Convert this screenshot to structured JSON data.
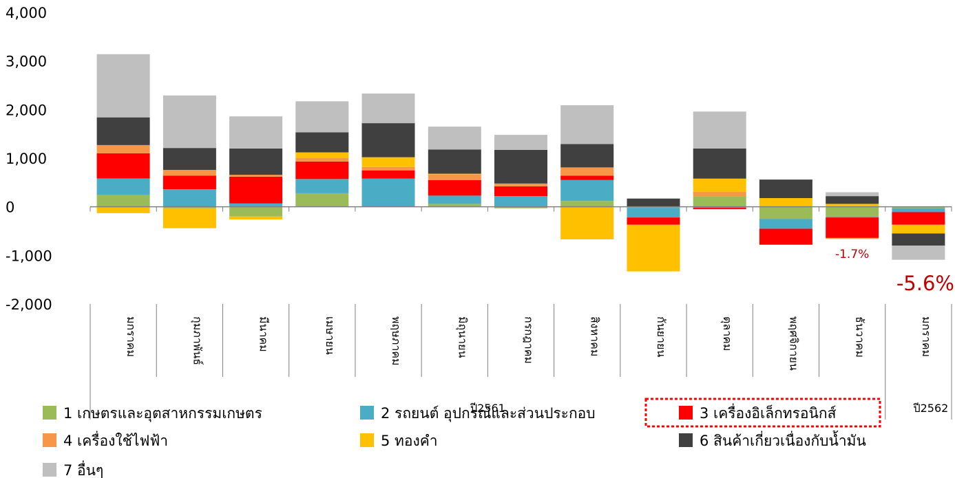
{
  "chart_data": {
    "type": "bar",
    "stacked": true,
    "ylim": [
      -2000,
      4000
    ],
    "yticks": [
      "4,000",
      "3,000",
      "2,000",
      "1,000",
      "0",
      "-1,000",
      "-2,000"
    ],
    "ytick_values": [
      4000,
      3000,
      2000,
      1000,
      0,
      -1000,
      -2000
    ],
    "categories": [
      "มกราคม",
      "กุมภาพันธ์",
      "มีนาคม",
      "เมษายน",
      "พฤษภาคม",
      "มิถุนายน",
      "กรกฎาคม",
      "สิงหาคม",
      "กันยายน",
      "ตุลาคม",
      "พฤศจิกายน",
      "ธันวาคม",
      "มกราคม"
    ],
    "groups": [
      {
        "label": "ปี2561",
        "start": 0,
        "end": 11
      },
      {
        "label": "ปี2562",
        "start": 12,
        "end": 12
      }
    ],
    "series": [
      {
        "name": "1 เกษตรและอุตสาหกรรมเกษตร",
        "color": "#9bbb59",
        "values": [
          250,
          -30,
          -200,
          280,
          0,
          60,
          -30,
          120,
          -20,
          210,
          -250,
          -200,
          -30
        ]
      },
      {
        "name": "2 รถยนต์ อุปกรณ์และส่วนประกอบ",
        "color": "#4bacc6",
        "values": [
          330,
          360,
          70,
          290,
          580,
          170,
          220,
          430,
          -200,
          -20,
          -200,
          -20,
          -80
        ]
      },
      {
        "name": "3 เครื่องอิเล็กทรอนิกส์",
        "color": "#ff0000",
        "values": [
          520,
          280,
          550,
          360,
          170,
          320,
          200,
          90,
          -150,
          -30,
          -330,
          -420,
          -260
        ]
      },
      {
        "name": "4 เครื่องใช้ไฟฟ้า",
        "color": "#f79646",
        "values": [
          170,
          120,
          40,
          70,
          70,
          110,
          60,
          170,
          0,
          100,
          0,
          -20,
          0
        ]
      },
      {
        "name": "5 ทองคำ",
        "color": "#ffc000",
        "values": [
          -130,
          -410,
          -60,
          120,
          200,
          20,
          0,
          -670,
          -960,
          270,
          180,
          60,
          -180
        ]
      },
      {
        "name": "6 สินค้าเกี่ยวเนื่องกับน้ำมัน",
        "color": "#404040",
        "values": [
          570,
          450,
          540,
          410,
          700,
          500,
          690,
          480,
          170,
          620,
          380,
          160,
          -250
        ]
      },
      {
        "name": "7 อื่นๆ",
        "color": "#bfbfbf",
        "values": [
          1300,
          1080,
          660,
          640,
          610,
          470,
          310,
          800,
          0,
          760,
          0,
          80,
          -290
        ]
      }
    ],
    "annotations": [
      {
        "text": "-1.7%",
        "category_index": 11,
        "style": "small"
      },
      {
        "text": "-5.6%",
        "category_index": 12,
        "style": "big"
      }
    ],
    "legend_position": "bottom",
    "highlighted_legend_index": 2
  }
}
